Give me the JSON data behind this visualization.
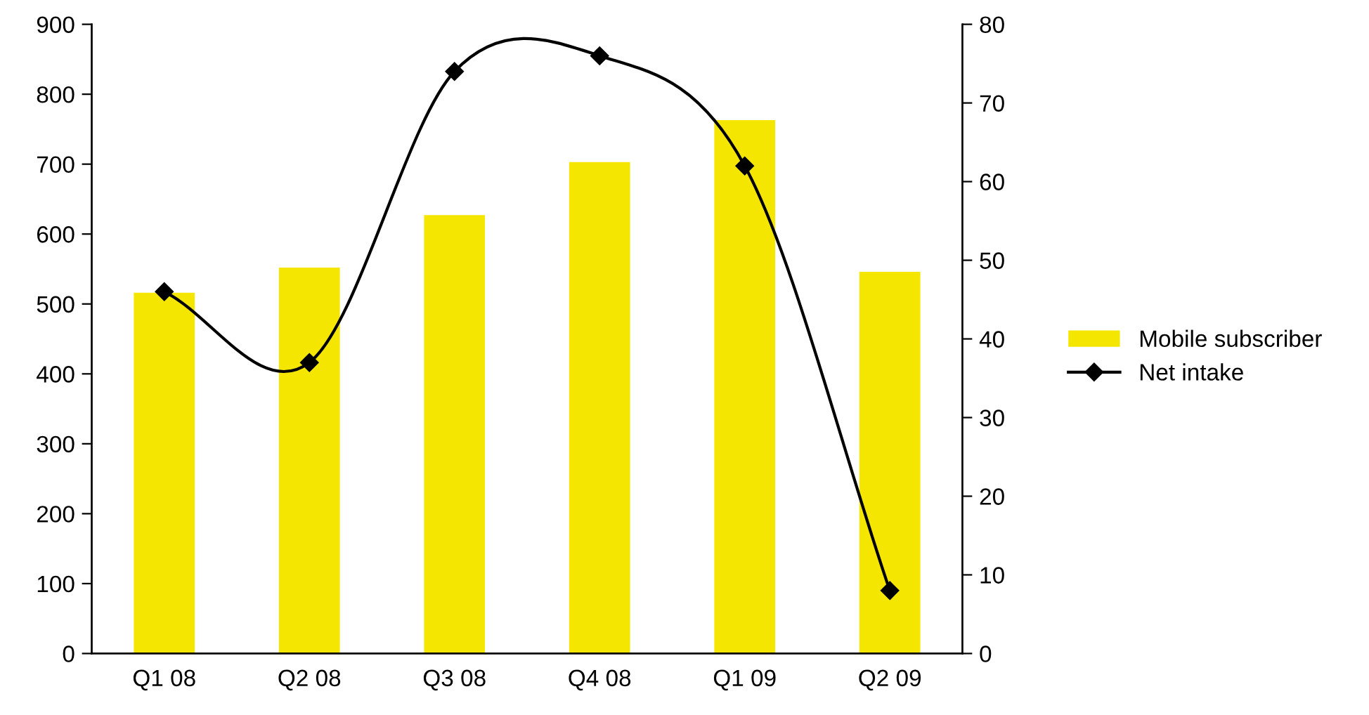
{
  "chart_data": {
    "type": "bar",
    "categories": [
      "Q1 08",
      "Q2 08",
      "Q3 08",
      "Q4 08",
      "Q1 09",
      "Q2 09"
    ],
    "series": [
      {
        "name": "Mobile subscriber",
        "color": "#f5e600",
        "values": [
          516,
          552,
          627,
          703,
          763,
          546
        ]
      },
      {
        "name": "Net intake",
        "type": "line",
        "axis": "y2",
        "color": "#000000",
        "marker": "diamond",
        "values": [
          46,
          37,
          74,
          76,
          62,
          8
        ]
      }
    ],
    "ylim": [
      0,
      900
    ],
    "yticks": [
      0,
      100,
      200,
      300,
      400,
      500,
      600,
      700,
      800,
      900
    ],
    "y2lim": [
      0,
      80
    ],
    "y2ticks": [
      0,
      10,
      20,
      30,
      40,
      50,
      60,
      70,
      80
    ],
    "grid": false,
    "legend": "right"
  }
}
